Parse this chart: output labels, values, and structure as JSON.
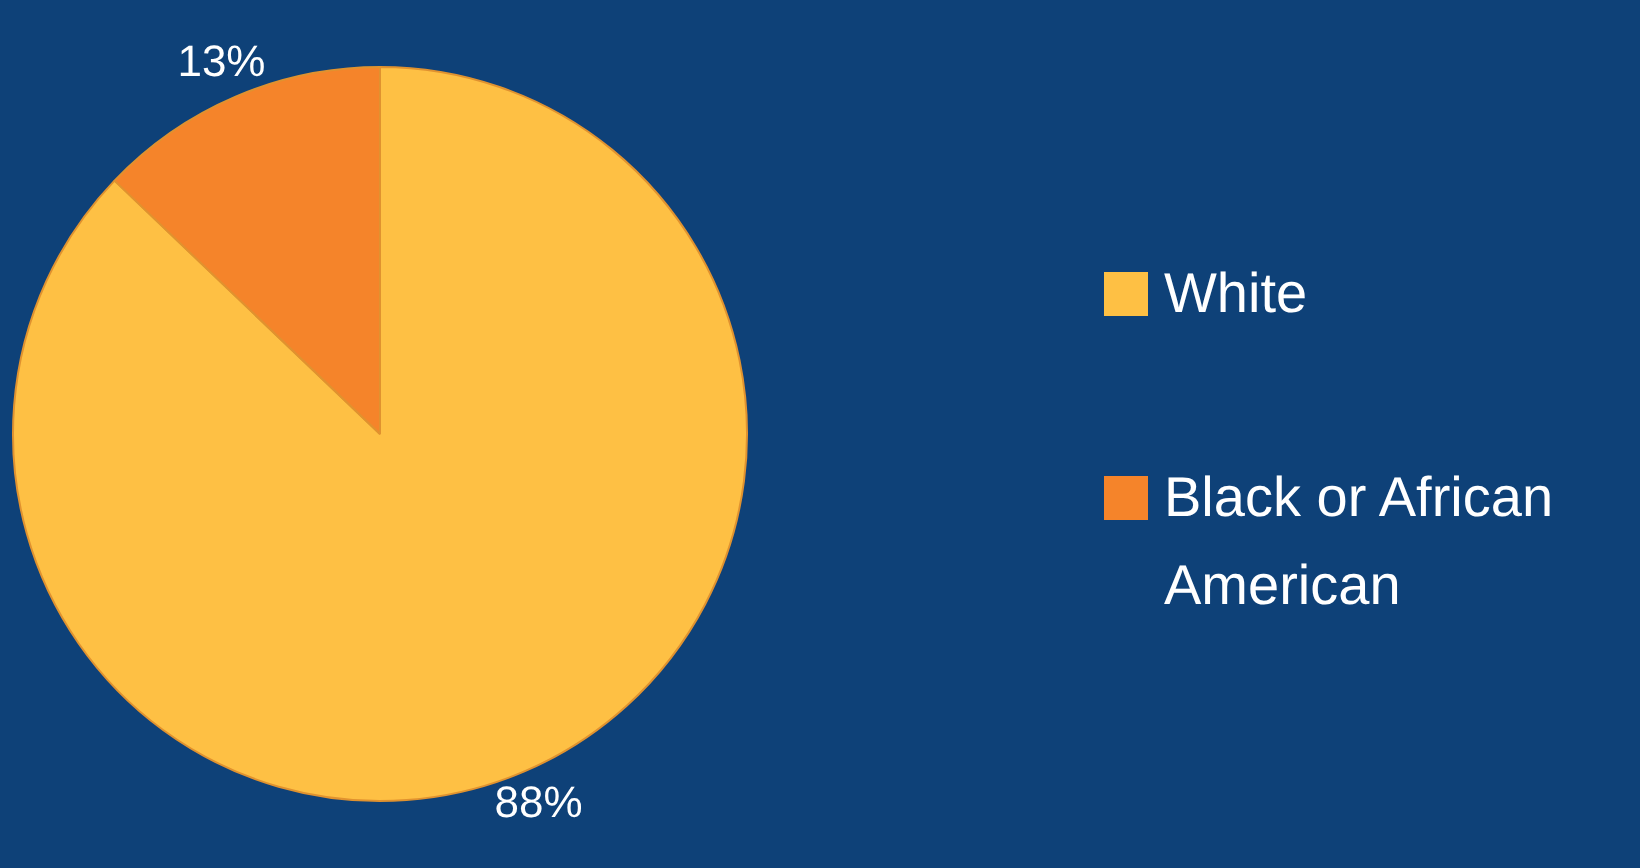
{
  "chart_data": {
    "type": "pie",
    "categories": [
      "White",
      "Black or African American"
    ],
    "values": [
      88,
      13
    ],
    "colors": [
      "#fec044",
      "#f5842a"
    ],
    "value_labels": [
      "88%",
      "13%"
    ],
    "legend": "right"
  }
}
